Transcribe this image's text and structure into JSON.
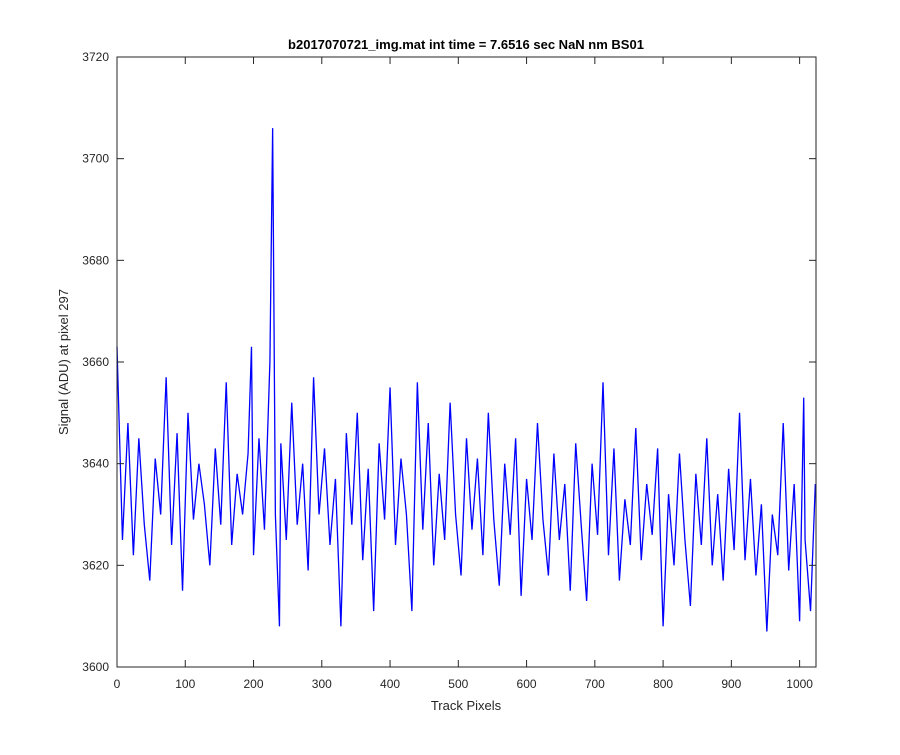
{
  "chart_data": {
    "type": "line",
    "title": "b2017070721_img.mat int time = 7.6516 sec  NaN nm BS01",
    "x_label": "Track Pixels",
    "y_label": "Signal (ADU) at pixel 297",
    "xlim": [
      0,
      1024
    ],
    "ylim": [
      3600,
      3720
    ],
    "xticks": [
      0,
      100,
      200,
      300,
      400,
      500,
      600,
      700,
      800,
      900,
      1000
    ],
    "yticks": [
      3600,
      3620,
      3640,
      3660,
      3680,
      3700,
      3720
    ],
    "x": [
      0,
      8,
      16,
      24,
      32,
      40,
      48,
      56,
      64,
      72,
      80,
      88,
      96,
      104,
      112,
      120,
      128,
      136,
      144,
      152,
      160,
      168,
      176,
      184,
      192,
      197,
      200,
      208,
      216,
      224,
      228,
      232,
      238,
      240,
      248,
      256,
      264,
      272,
      280,
      288,
      296,
      304,
      312,
      320,
      328,
      336,
      344,
      352,
      360,
      368,
      376,
      384,
      392,
      400,
      408,
      416,
      424,
      432,
      440,
      448,
      456,
      464,
      472,
      480,
      488,
      496,
      504,
      512,
      520,
      528,
      536,
      544,
      552,
      560,
      568,
      576,
      584,
      592,
      600,
      608,
      616,
      624,
      632,
      640,
      648,
      656,
      664,
      672,
      680,
      688,
      696,
      704,
      712,
      720,
      728,
      736,
      744,
      752,
      760,
      768,
      776,
      784,
      792,
      800,
      808,
      816,
      824,
      832,
      840,
      848,
      856,
      864,
      872,
      880,
      888,
      896,
      904,
      912,
      920,
      928,
      936,
      944,
      952,
      960,
      968,
      976,
      984,
      992,
      1000,
      1006,
      1008,
      1016,
      1023
    ],
    "series": [
      {
        "name": "Signal",
        "color": "#0000ff",
        "values": [
          3663,
          3625,
          3648,
          3622,
          3645,
          3628,
          3617,
          3641,
          3630,
          3657,
          3624,
          3646,
          3615,
          3650,
          3629,
          3640,
          3632,
          3620,
          3643,
          3628,
          3656,
          3624,
          3638,
          3630,
          3642,
          3663,
          3622,
          3645,
          3627,
          3660,
          3706,
          3630,
          3608,
          3644,
          3625,
          3652,
          3628,
          3640,
          3619,
          3657,
          3630,
          3643,
          3624,
          3637,
          3608,
          3646,
          3628,
          3650,
          3621,
          3639,
          3611,
          3644,
          3629,
          3655,
          3624,
          3641,
          3630,
          3611,
          3656,
          3627,
          3648,
          3620,
          3638,
          3625,
          3652,
          3630,
          3618,
          3645,
          3627,
          3641,
          3622,
          3650,
          3629,
          3616,
          3640,
          3626,
          3645,
          3614,
          3637,
          3625,
          3648,
          3629,
          3618,
          3642,
          3625,
          3636,
          3615,
          3644,
          3628,
          3613,
          3640,
          3626,
          3656,
          3622,
          3643,
          3617,
          3633,
          3624,
          3647,
          3621,
          3636,
          3626,
          3643,
          3608,
          3634,
          3620,
          3642,
          3625,
          3612,
          3638,
          3624,
          3645,
          3620,
          3634,
          3617,
          3639,
          3623,
          3650,
          3621,
          3637,
          3618,
          3632,
          3607,
          3630,
          3622,
          3648,
          3619,
          3636,
          3609,
          3653,
          3625,
          3611,
          3636
        ]
      }
    ]
  }
}
